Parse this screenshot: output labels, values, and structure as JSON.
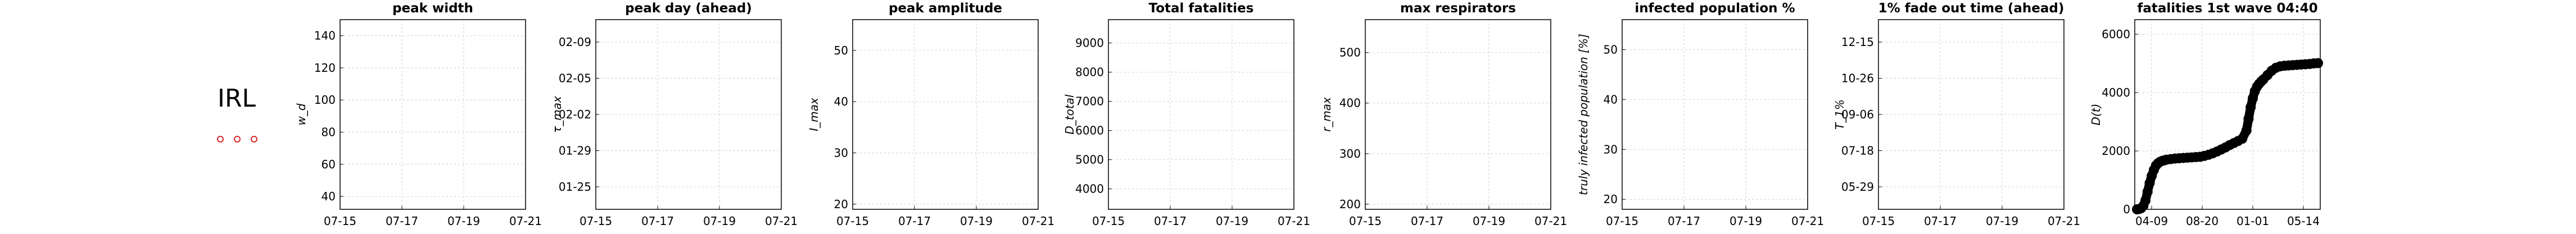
{
  "country": {
    "label": "IRL",
    "marker_count": 3,
    "marker_color": "#d62728"
  },
  "chart_data": [
    {
      "type": "line",
      "title": "peak width",
      "ylabel": "w_d",
      "xticks": [
        "07-15",
        "07-17",
        "07-19",
        "07-21"
      ],
      "yticks": [
        "40",
        "60",
        "80",
        "100",
        "120",
        "140"
      ],
      "ylim": [
        32,
        150
      ],
      "grid": true,
      "series": []
    },
    {
      "type": "line",
      "title": "peak day (ahead)",
      "ylabel": "τ_max",
      "xticks": [
        "07-15",
        "07-17",
        "07-19",
        "07-21"
      ],
      "yticks": [
        "01-25",
        "01-29",
        "02-02",
        "02-05",
        "02-09"
      ],
      "grid": true,
      "series": []
    },
    {
      "type": "line",
      "title": "peak amplitude",
      "ylabel": "I_max",
      "xticks": [
        "07-15",
        "07-17",
        "07-19",
        "07-21"
      ],
      "yticks": [
        "20",
        "30",
        "40",
        "50"
      ],
      "ylim": [
        19,
        56
      ],
      "grid": true,
      "series": []
    },
    {
      "type": "line",
      "title": "Total fatalities",
      "ylabel": "D_total",
      "xticks": [
        "07-15",
        "07-17",
        "07-19",
        "07-21"
      ],
      "yticks": [
        "4000",
        "5000",
        "6000",
        "7000",
        "8000",
        "9000"
      ],
      "ylim": [
        3300,
        9800
      ],
      "grid": true,
      "series": []
    },
    {
      "type": "line",
      "title": "max respirators",
      "ylabel": "r_max",
      "xticks": [
        "07-15",
        "07-17",
        "07-19",
        "07-21"
      ],
      "yticks": [
        "200",
        "300",
        "400",
        "500"
      ],
      "ylim": [
        190,
        565
      ],
      "grid": true,
      "series": []
    },
    {
      "type": "line",
      "title": "infected population %",
      "ylabel": "truly infected population [%]",
      "xticks": [
        "07-15",
        "07-17",
        "07-19",
        "07-21"
      ],
      "yticks": [
        "20",
        "30",
        "40",
        "50"
      ],
      "ylim": [
        18,
        56
      ],
      "grid": true,
      "series": []
    },
    {
      "type": "line",
      "title": "1% fade out time (ahead)",
      "ylabel": "T_1%",
      "xticks": [
        "07-15",
        "07-17",
        "07-19",
        "07-21"
      ],
      "yticks": [
        "05-29",
        "07-18",
        "09-06",
        "10-26",
        "12-15"
      ],
      "grid": true,
      "series": []
    },
    {
      "type": "line",
      "title": "fatalities 1st wave 04:40",
      "ylabel": "D(t)",
      "xticks": [
        "04-09",
        "08-20",
        "01-01",
        "05-14"
      ],
      "yticks": [
        "0",
        "2000",
        "4000",
        "6000"
      ],
      "ylim": [
        0,
        6500
      ],
      "grid": true,
      "series": [
        {
          "style": "markers",
          "color": "#000000",
          "x": [
            0,
            5,
            10,
            15,
            20,
            25,
            30,
            35,
            40,
            45,
            50,
            55,
            60,
            65,
            70,
            80,
            90,
            100,
            110,
            120,
            130,
            140,
            150,
            160,
            170,
            180,
            190,
            200,
            210,
            220,
            230,
            240,
            250,
            260,
            265,
            270,
            275,
            280,
            285,
            290,
            295,
            300,
            310,
            320,
            330,
            340,
            350,
            360,
            370,
            380,
            390,
            400,
            410,
            420,
            430
          ],
          "y": [
            0,
            10,
            40,
            120,
            300,
            600,
            900,
            1150,
            1350,
            1500,
            1580,
            1630,
            1660,
            1680,
            1700,
            1720,
            1740,
            1750,
            1760,
            1770,
            1780,
            1790,
            1800,
            1830,
            1870,
            1920,
            1980,
            2050,
            2120,
            2200,
            2270,
            2340,
            2420,
            2700,
            3100,
            3500,
            3800,
            4050,
            4200,
            4300,
            4380,
            4450,
            4600,
            4750,
            4850,
            4900,
            4920,
            4930,
            4940,
            4950,
            4960,
            4970,
            4980,
            5000,
            5010
          ]
        }
      ]
    }
  ]
}
